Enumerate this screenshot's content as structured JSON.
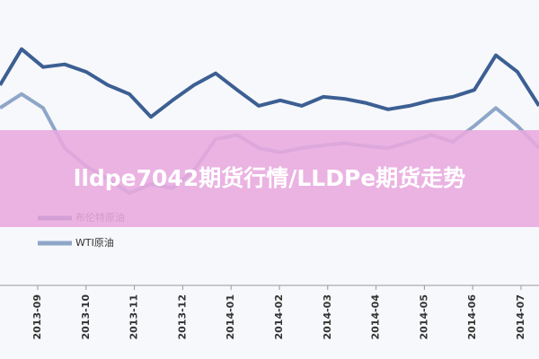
{
  "chart_data": {
    "type": "line",
    "title": "lldpe7042期货行情/LLDPe期货走势",
    "x_labels": [
      "2013-09",
      "2013-10",
      "2013-11",
      "2013-12",
      "2014-01",
      "2014-02",
      "2014-03",
      "2014-04",
      "2014-05",
      "2014-06",
      "2014-07"
    ],
    "ylim": [
      85,
      120
    ],
    "series": [
      {
        "name": "布伦特原油",
        "color": "#3c5f93",
        "values": [
          111.6,
          116.8,
          114.2,
          114.6,
          113.5,
          111.6,
          110.3,
          107.0,
          109.4,
          111.6,
          113.3,
          110.9,
          108.6,
          109.4,
          108.6,
          109.9,
          109.6,
          109.0,
          108.1,
          108.6,
          109.4,
          109.9,
          110.9,
          115.9,
          113.5,
          108.6
        ]
      },
      {
        "name": "WTI原油",
        "color": "#8ea6c8",
        "values": [
          108.3,
          110.3,
          108.3,
          102.5,
          99.9,
          98.0,
          96.0,
          97.3,
          96.7,
          99.3,
          103.8,
          104.4,
          102.5,
          101.9,
          102.5,
          102.9,
          103.2,
          102.8,
          102.5,
          103.4,
          104.4,
          103.4,
          105.7,
          108.3,
          105.7,
          102.5
        ]
      }
    ]
  }
}
